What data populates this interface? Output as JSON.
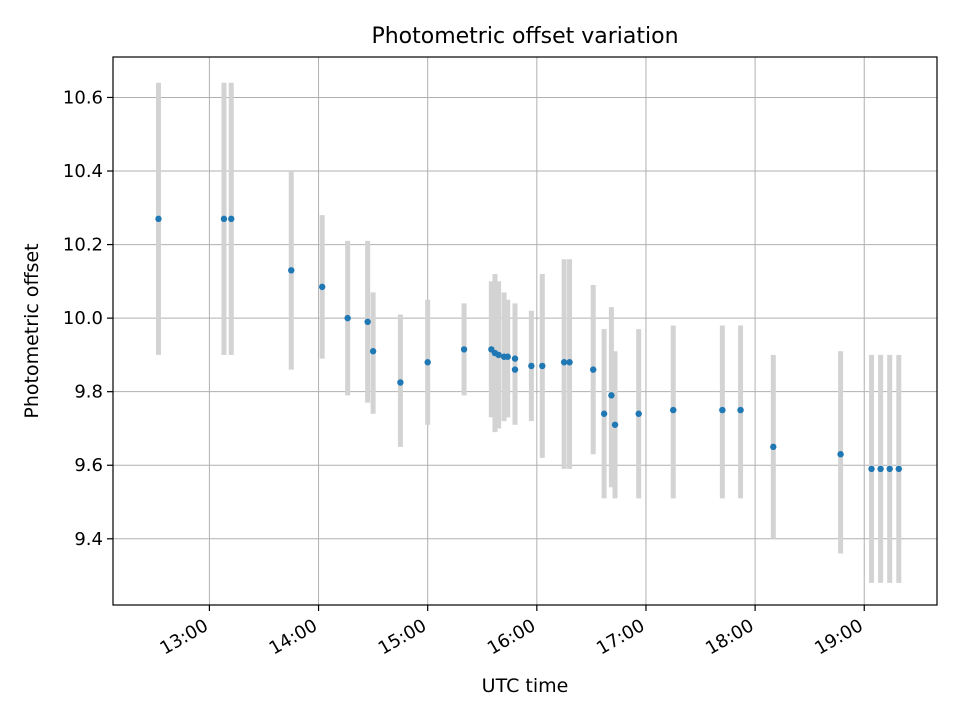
{
  "chart_data": {
    "type": "scatter",
    "title": "Photometric offset variation",
    "xlabel": "UTC time",
    "ylabel": "Photometric offset",
    "xlim": [
      "12:07",
      "19:40"
    ],
    "ylim": [
      9.22,
      10.71
    ],
    "xticks": [
      "13:00",
      "14:00",
      "15:00",
      "16:00",
      "17:00",
      "18:00",
      "19:00"
    ],
    "yticks": [
      "9.4",
      "9.6",
      "9.8",
      "10.0",
      "10.2",
      "10.4",
      "10.6"
    ],
    "grid": true,
    "legend": "none",
    "colors": {
      "points": "#1f77b4",
      "errorbars": "#d3d3d3",
      "grid": "#b0b0b0"
    },
    "points": [
      {
        "x": "12:32",
        "y": 10.27,
        "ylow": 9.9,
        "yhigh": 10.64
      },
      {
        "x": "13:08",
        "y": 10.27,
        "ylow": 9.9,
        "yhigh": 10.64
      },
      {
        "x": "13:12",
        "y": 10.27,
        "ylow": 9.9,
        "yhigh": 10.64
      },
      {
        "x": "13:45",
        "y": 10.13,
        "ylow": 9.86,
        "yhigh": 10.4
      },
      {
        "x": "14:02",
        "y": 10.085,
        "ylow": 9.89,
        "yhigh": 10.28
      },
      {
        "x": "14:16",
        "y": 10.0,
        "ylow": 9.79,
        "yhigh": 10.21
      },
      {
        "x": "14:27",
        "y": 9.99,
        "ylow": 9.77,
        "yhigh": 10.21
      },
      {
        "x": "14:30",
        "y": 9.91,
        "ylow": 9.74,
        "yhigh": 10.07
      },
      {
        "x": "14:45",
        "y": 9.825,
        "ylow": 9.65,
        "yhigh": 10.01
      },
      {
        "x": "15:00",
        "y": 9.88,
        "ylow": 9.71,
        "yhigh": 10.05
      },
      {
        "x": "15:20",
        "y": 9.915,
        "ylow": 9.79,
        "yhigh": 10.04
      },
      {
        "x": "15:35",
        "y": 9.915,
        "ylow": 9.73,
        "yhigh": 10.1
      },
      {
        "x": "15:37",
        "y": 9.905,
        "ylow": 9.69,
        "yhigh": 10.12
      },
      {
        "x": "15:39",
        "y": 9.9,
        "ylow": 9.7,
        "yhigh": 10.1
      },
      {
        "x": "15:42",
        "y": 9.895,
        "ylow": 9.72,
        "yhigh": 10.07
      },
      {
        "x": "15:44",
        "y": 9.895,
        "ylow": 9.73,
        "yhigh": 10.05
      },
      {
        "x": "15:48",
        "y": 9.89,
        "ylow": 9.74,
        "yhigh": 10.04
      },
      {
        "x": "15:48",
        "y": 9.86,
        "ylow": 9.71,
        "yhigh": 10.0
      },
      {
        "x": "15:57",
        "y": 9.87,
        "ylow": 9.72,
        "yhigh": 10.02
      },
      {
        "x": "16:03",
        "y": 9.87,
        "ylow": 9.62,
        "yhigh": 10.12
      },
      {
        "x": "16:15",
        "y": 9.88,
        "ylow": 9.59,
        "yhigh": 10.16
      },
      {
        "x": "16:18",
        "y": 9.88,
        "ylow": 9.59,
        "yhigh": 10.16
      },
      {
        "x": "16:31",
        "y": 9.86,
        "ylow": 9.63,
        "yhigh": 10.09
      },
      {
        "x": "16:37",
        "y": 9.74,
        "ylow": 9.51,
        "yhigh": 9.97
      },
      {
        "x": "16:41",
        "y": 9.79,
        "ylow": 9.54,
        "yhigh": 10.03
      },
      {
        "x": "16:43",
        "y": 9.71,
        "ylow": 9.51,
        "yhigh": 9.91
      },
      {
        "x": "16:56",
        "y": 9.74,
        "ylow": 9.51,
        "yhigh": 9.97
      },
      {
        "x": "17:15",
        "y": 9.75,
        "ylow": 9.51,
        "yhigh": 9.98
      },
      {
        "x": "17:42",
        "y": 9.75,
        "ylow": 9.51,
        "yhigh": 9.98
      },
      {
        "x": "17:52",
        "y": 9.75,
        "ylow": 9.51,
        "yhigh": 9.98
      },
      {
        "x": "18:10",
        "y": 9.65,
        "ylow": 9.4,
        "yhigh": 9.9
      },
      {
        "x": "18:47",
        "y": 9.63,
        "ylow": 9.36,
        "yhigh": 9.91
      },
      {
        "x": "19:04",
        "y": 9.59,
        "ylow": 9.28,
        "yhigh": 9.9
      },
      {
        "x": "19:09",
        "y": 9.59,
        "ylow": 9.28,
        "yhigh": 9.9
      },
      {
        "x": "19:14",
        "y": 9.59,
        "ylow": 9.28,
        "yhigh": 9.9
      },
      {
        "x": "19:19",
        "y": 9.59,
        "ylow": 9.28,
        "yhigh": 9.9
      }
    ]
  }
}
